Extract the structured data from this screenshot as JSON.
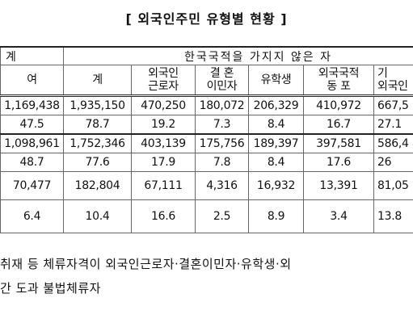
{
  "title": "[ 외국인주민 유형별 현황 ]",
  "table": {
    "header_top": [
      "계",
      "한국국적을 가지지 않은 자"
    ],
    "header": [
      [
        "여"
      ],
      [
        "계"
      ],
      [
        "외국인",
        "근로자"
      ],
      [
        "결 혼",
        "이민자"
      ],
      [
        "유학생"
      ],
      [
        "외국국적",
        "동 포"
      ],
      [
        "기",
        "외국인"
      ]
    ],
    "rows": [
      [
        "1,169,438",
        "1,935,150",
        "470,250",
        "180,072",
        "206,329",
        "410,972",
        "667,5"
      ],
      [
        "47.5",
        "78.7",
        "19.2",
        "7.3",
        "8.4",
        "16.7",
        "27.1"
      ],
      [
        "1,098,961",
        "1,752,346",
        "403,139",
        "175,756",
        "189,397",
        "397,581",
        "586,4"
      ],
      [
        "48.7",
        "77.6",
        "17.9",
        "7.8",
        "8.4",
        "17.6",
        "26"
      ],
      [
        "70,477",
        "182,804",
        "67,111",
        "4,316",
        "16,932",
        "13,391",
        "81,05"
      ],
      [
        "6.4",
        "10.4",
        "16.6",
        "2.5",
        "8.9",
        "3.4",
        "13.8"
      ]
    ]
  },
  "notes": [
    "취재 등 체류자격이 외국인근로자·결혼이민자·유학생·외",
    "간 도과 불법체류자"
  ]
}
